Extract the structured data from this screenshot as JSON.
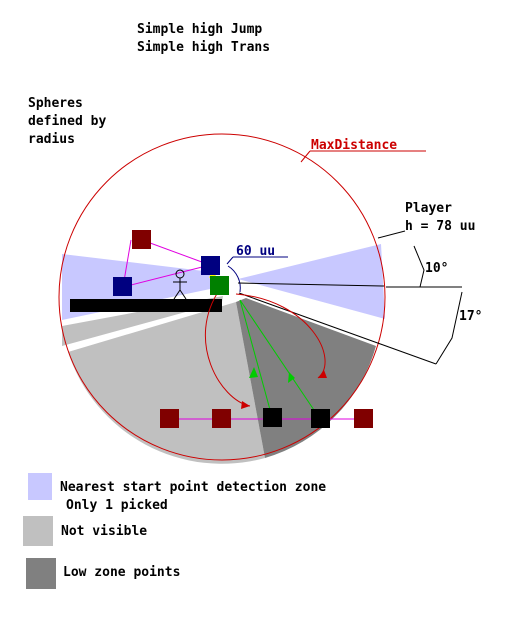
{
  "title": {
    "line1": "Simple high Jump",
    "line2": "Simple high Trans"
  },
  "note": {
    "line1": "Spheres",
    "line2": "defined by",
    "line3": "radius"
  },
  "labels": {
    "max_distance": "MaxDistance",
    "distance_60": "60 uu",
    "player_line1": "Player",
    "player_line2": "h = 78 uu",
    "angle_10": "10°",
    "angle_17": "17°"
  },
  "legend": {
    "detection_zone_line1": "Nearest start point detection zone",
    "detection_zone_line2": "Only 1 picked",
    "not_visible": "Not visible",
    "low_zone": "Low zone points"
  },
  "colors": {
    "detection_zone": "#c8c8ff",
    "not_visible": "#c0c0c0",
    "low_zone": "#808080",
    "sphere_outline": "#cc0000",
    "start_point": "#000080",
    "path_point": "#800000",
    "low_point": "#000000",
    "target_point": "#008000",
    "magenta_link": "#e000e0",
    "green_link": "#00cc00",
    "red_curve": "#cc0000",
    "label_blue": "#000080"
  }
}
